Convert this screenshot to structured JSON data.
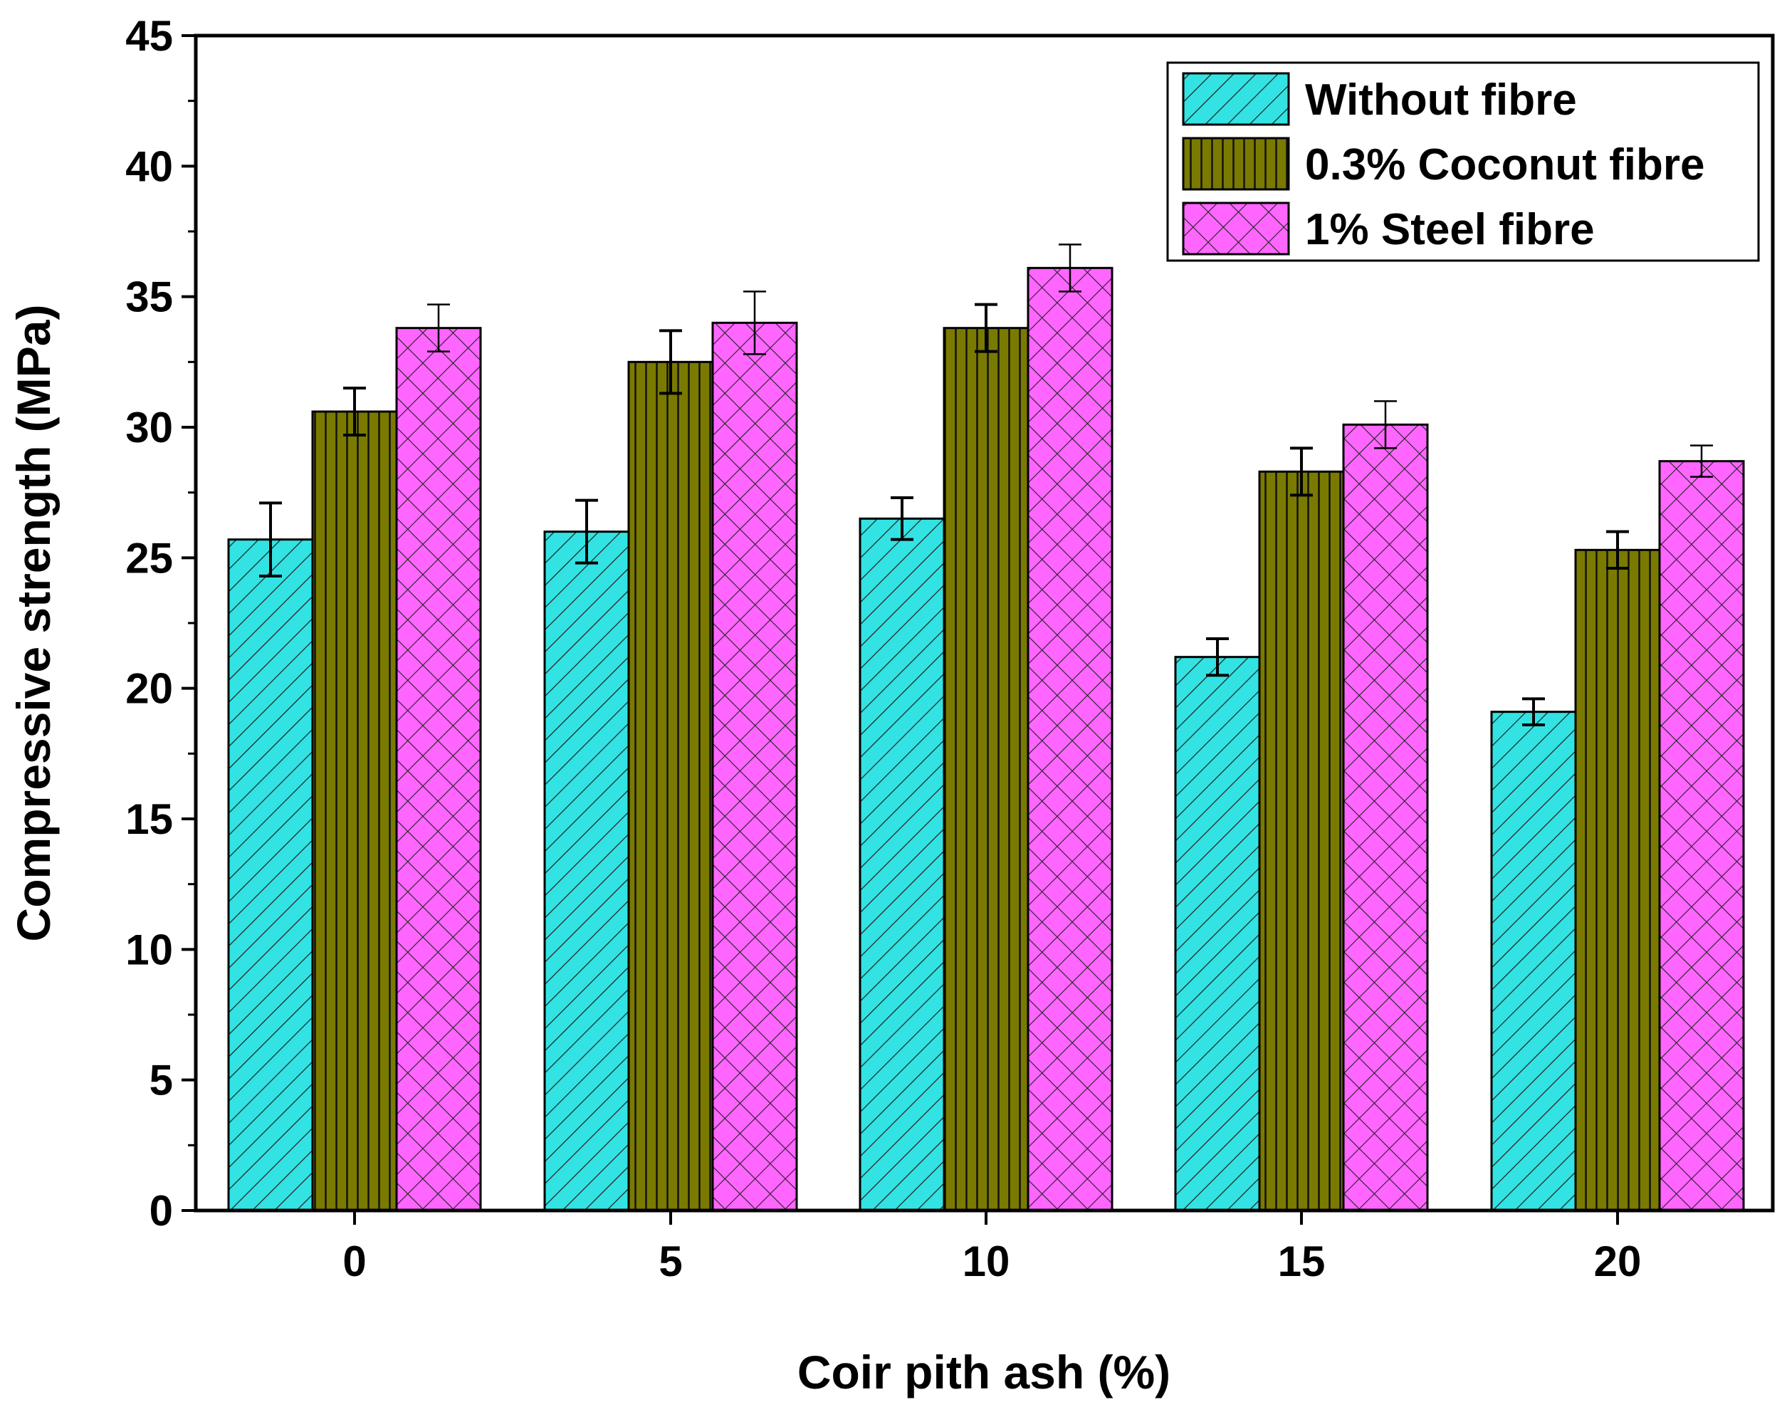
{
  "chart_data": {
    "type": "bar",
    "xlabel": "Coir pith ash (%)",
    "ylabel": "Compressive strength (MPa)",
    "categories": [
      "0",
      "5",
      "10",
      "15",
      "20"
    ],
    "ylim": [
      0,
      45
    ],
    "yticks": [
      0,
      5,
      10,
      15,
      20,
      25,
      30,
      35,
      40,
      45
    ],
    "grid": false,
    "legend_position": "top-right",
    "series": [
      {
        "name": "Without fibre",
        "values": [
          25.7,
          26.0,
          26.5,
          21.2,
          19.1
        ],
        "errors": [
          1.4,
          1.2,
          0.8,
          0.7,
          0.5
        ],
        "color": "#33e3e3",
        "pattern": "diagonal-hatch"
      },
      {
        "name": "0.3% Coconut fibre",
        "values": [
          30.6,
          32.5,
          33.8,
          28.3,
          25.3
        ],
        "errors": [
          0.9,
          1.2,
          0.9,
          0.9,
          0.7
        ],
        "color": "#7a7a00",
        "pattern": "vertical-lines"
      },
      {
        "name": "1% Steel fibre",
        "values": [
          33.8,
          34.0,
          36.1,
          30.1,
          28.7
        ],
        "errors": [
          0.9,
          1.2,
          0.9,
          0.9,
          0.6
        ],
        "color": "#ff66ff",
        "pattern": "crosshatch"
      }
    ]
  }
}
